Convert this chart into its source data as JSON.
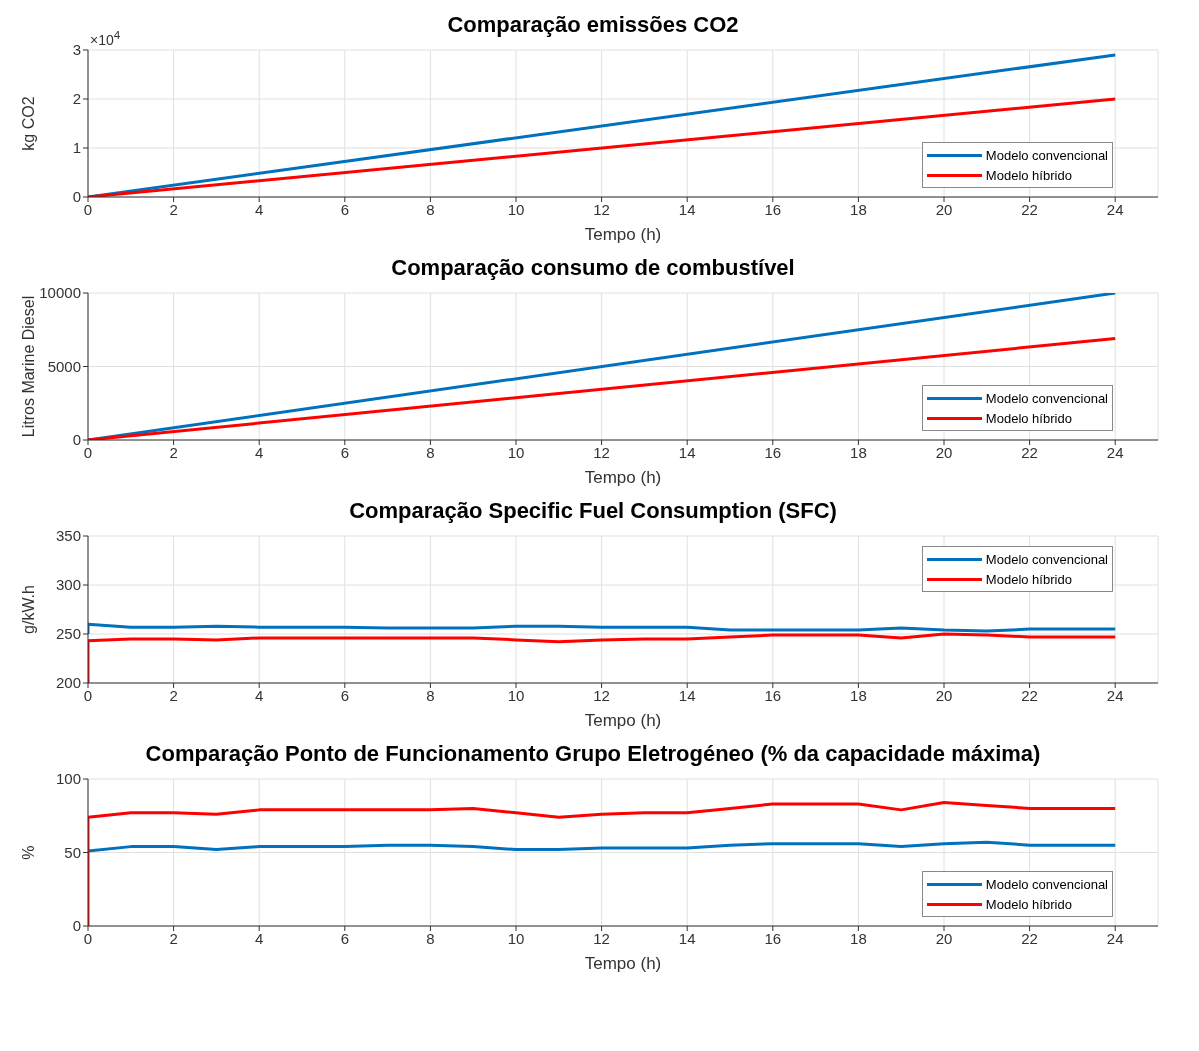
{
  "chart_data": [
    {
      "type": "line",
      "title": "Comparação emissões CO2",
      "xlabel": "Tempo (h)",
      "ylabel": "kg CO2",
      "annotations": [
        "×10$^{4}$"
      ],
      "xlim": [
        0,
        25
      ],
      "xticks": [
        0,
        2,
        4,
        6,
        8,
        10,
        12,
        14,
        16,
        18,
        20,
        22,
        24
      ],
      "ylim": [
        0,
        3
      ],
      "yticks": [
        0,
        1,
        2,
        3
      ],
      "grid": true,
      "legend": "bottom right",
      "x": [
        0,
        24
      ],
      "series": [
        {
          "name": "Modelo convencional",
          "color": "#0072bd",
          "values": [
            0,
            2.9
          ]
        },
        {
          "name": "Modelo híbrido",
          "color": "#ff0000",
          "values": [
            0,
            2.0
          ]
        }
      ]
    },
    {
      "type": "line",
      "title": "Comparação consumo de combustível",
      "xlabel": "Tempo (h)",
      "ylabel": "Litros Marine Diesel",
      "xlim": [
        0,
        25
      ],
      "xticks": [
        0,
        2,
        4,
        6,
        8,
        10,
        12,
        14,
        16,
        18,
        20,
        22,
        24
      ],
      "ylim": [
        0,
        10000
      ],
      "yticks": [
        0,
        5000,
        10000
      ],
      "grid": true,
      "legend": "bottom right",
      "x": [
        0,
        24
      ],
      "series": [
        {
          "name": "Modelo convencional",
          "color": "#0072bd",
          "values": [
            0,
            10000
          ]
        },
        {
          "name": "Modelo híbrido",
          "color": "#ff0000",
          "values": [
            0,
            6900
          ]
        }
      ]
    },
    {
      "type": "line",
      "title": "Comparação Specific Fuel Consumption (SFC)",
      "xlabel": "Tempo (h)",
      "ylabel": "g/kW.h",
      "xlim": [
        0,
        25
      ],
      "xticks": [
        0,
        2,
        4,
        6,
        8,
        10,
        12,
        14,
        16,
        18,
        20,
        22,
        24
      ],
      "ylim": [
        200,
        350
      ],
      "yticks": [
        200,
        250,
        300,
        350
      ],
      "grid": true,
      "legend": "top right",
      "x": [
        0,
        0,
        1,
        2,
        3,
        4,
        5,
        6,
        7,
        8,
        9,
        10,
        11,
        12,
        13,
        14,
        15,
        16,
        17,
        18,
        19,
        20,
        21,
        22,
        23,
        24
      ],
      "series": [
        {
          "name": "Modelo convencional",
          "color": "#0072bd",
          "values": [
            250,
            260,
            257,
            257,
            258,
            257,
            257,
            257,
            256,
            256,
            256,
            258,
            258,
            257,
            257,
            257,
            254,
            254,
            254,
            254,
            256,
            254,
            253,
            255,
            255,
            255
          ]
        },
        {
          "name": "Modelo híbrido",
          "color": "#ff0000",
          "values": [
            200,
            243,
            245,
            245,
            244,
            246,
            246,
            246,
            246,
            246,
            246,
            244,
            242,
            244,
            245,
            245,
            247,
            249,
            249,
            249,
            246,
            250,
            249,
            247,
            247,
            247
          ]
        }
      ]
    },
    {
      "type": "line",
      "title": "Comparação Ponto de Funcionamento Grupo Eletrogéneo (% da capacidade máxima)",
      "xlabel": "Tempo (h)",
      "ylabel": "%",
      "xlim": [
        0,
        25
      ],
      "xticks": [
        0,
        2,
        4,
        6,
        8,
        10,
        12,
        14,
        16,
        18,
        20,
        22,
        24
      ],
      "ylim": [
        0,
        100
      ],
      "yticks": [
        0,
        50,
        100
      ],
      "grid": true,
      "legend": "bottom right",
      "x": [
        0,
        0,
        1,
        2,
        3,
        4,
        5,
        6,
        7,
        8,
        9,
        10,
        11,
        12,
        13,
        14,
        15,
        16,
        17,
        18,
        19,
        20,
        21,
        22,
        23,
        24
      ],
      "series": [
        {
          "name": "Modelo convencional",
          "color": "#0072bd",
          "values": [
            50,
            51,
            54,
            54,
            52,
            54,
            54,
            54,
            55,
            55,
            54,
            52,
            52,
            53,
            53,
            53,
            55,
            56,
            56,
            56,
            54,
            56,
            57,
            55,
            55,
            55
          ]
        },
        {
          "name": "Modelo híbrido",
          "color": "#ff0000",
          "values": [
            0,
            74,
            77,
            77,
            76,
            79,
            79,
            79,
            79,
            79,
            80,
            77,
            74,
            76,
            77,
            77,
            80,
            83,
            83,
            83,
            79,
            84,
            82,
            80,
            80,
            80
          ]
        }
      ]
    }
  ]
}
